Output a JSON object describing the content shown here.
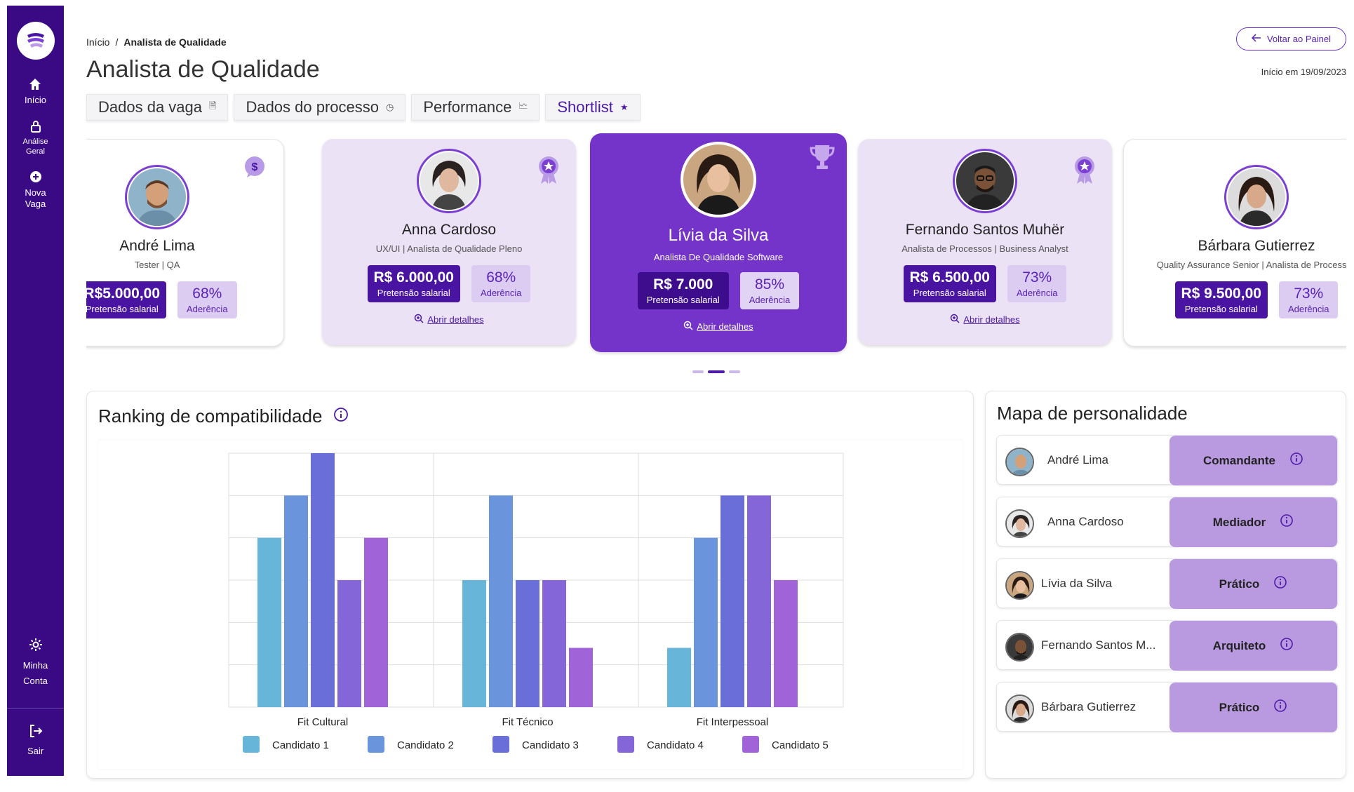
{
  "sidebar": {
    "items": [
      {
        "label": "Início",
        "icon": "home-icon"
      },
      {
        "label": "Análise Geral",
        "icon": "lock-icon"
      },
      {
        "label": "Nova Vaga",
        "icon": "plus-circle-icon"
      },
      {
        "label": "Minha Conta",
        "icon": "gear-icon"
      },
      {
        "label": "Sair",
        "icon": "logout-icon"
      }
    ]
  },
  "header": {
    "breadcrumb_home": "Início",
    "breadcrumb_sep": "/",
    "breadcrumb_current": "Analista de Qualidade",
    "title": "Analista de Qualidade",
    "back_button": "Voltar ao Painel",
    "start_date": "Início em 19/09/2023"
  },
  "tabs": [
    {
      "label": "Dados da vaga",
      "icon": "document-icon"
    },
    {
      "label": "Dados do processo",
      "icon": "clock-icon"
    },
    {
      "label": "Performance",
      "icon": "chart-icon"
    },
    {
      "label": "Shortlist",
      "icon": "star-icon"
    }
  ],
  "candidates": [
    {
      "name": "André Lima",
      "role": "Tester | QA",
      "salary": "R$5.000,00",
      "salary_label": "Pretensão salarial",
      "fit": "68%",
      "fit_label": "Aderência",
      "badge": "dollar-badge-icon"
    },
    {
      "name": "Anna Cardoso",
      "role": "UX/UI | Analista de Qualidade Pleno",
      "salary": "R$ 6.000,00",
      "salary_label": "Pretensão salarial",
      "fit": "68%",
      "fit_label": "Aderência",
      "details": "Abrir detalhes",
      "badge": "medal-icon"
    },
    {
      "name": "Lívia da Silva",
      "role": "Analista De Qualidade Software",
      "salary": "R$ 7.000",
      "salary_label": "Pretensão salarial",
      "fit": "85%",
      "fit_label": "Aderência",
      "details": "Abrir detalhes",
      "badge": "trophy-icon"
    },
    {
      "name": "Fernando Santos Muhër",
      "role": "Analista de Processos | Business Analyst",
      "salary": "R$ 6.500,00",
      "salary_label": "Pretensão salarial",
      "fit": "73%",
      "fit_label": "Aderência",
      "details": "Abrir detalhes",
      "badge": "medal-icon"
    },
    {
      "name": "Bárbara Gutierrez",
      "role": "Quality Assurance Senior | Analista de Processos",
      "salary": "R$ 9.500,00",
      "salary_label": "Pretensão salarial",
      "fit": "73%",
      "fit_label": "Aderência",
      "badge": "ribbon-icon"
    }
  ],
  "ranking": {
    "title": "Ranking de compatibilidade"
  },
  "chart_data": {
    "type": "bar",
    "categories": [
      "Fit Cultural",
      "Fit Técnico",
      "Fit Interpessoal"
    ],
    "series": [
      {
        "name": "Candidato 1",
        "color": "#67b6da",
        "values": [
          4,
          3,
          1.4
        ]
      },
      {
        "name": "Candidato 2",
        "color": "#6a95dc",
        "values": [
          5,
          5,
          4
        ]
      },
      {
        "name": "Candidato 3",
        "color": "#6a6ed8",
        "values": [
          6,
          3,
          5
        ]
      },
      {
        "name": "Candidato 4",
        "color": "#8566d8",
        "values": [
          3,
          3,
          5
        ]
      },
      {
        "name": "Candidato 5",
        "color": "#a064d8",
        "values": [
          4,
          1.4,
          3
        ]
      }
    ],
    "ylim": [
      0,
      6
    ],
    "grid": true,
    "legend": "bottom"
  },
  "personality": {
    "title": "Mapa de personalidade",
    "rows": [
      {
        "name": "André Lima",
        "type": "Comandante"
      },
      {
        "name": "Anna Cardoso",
        "type": "Mediador"
      },
      {
        "name": "Lívia da Silva",
        "type": "Prático"
      },
      {
        "name": "Fernando Santos M...",
        "type": "Arquiteto"
      },
      {
        "name": "Bárbara Gutierrez",
        "type": "Prático"
      }
    ]
  }
}
